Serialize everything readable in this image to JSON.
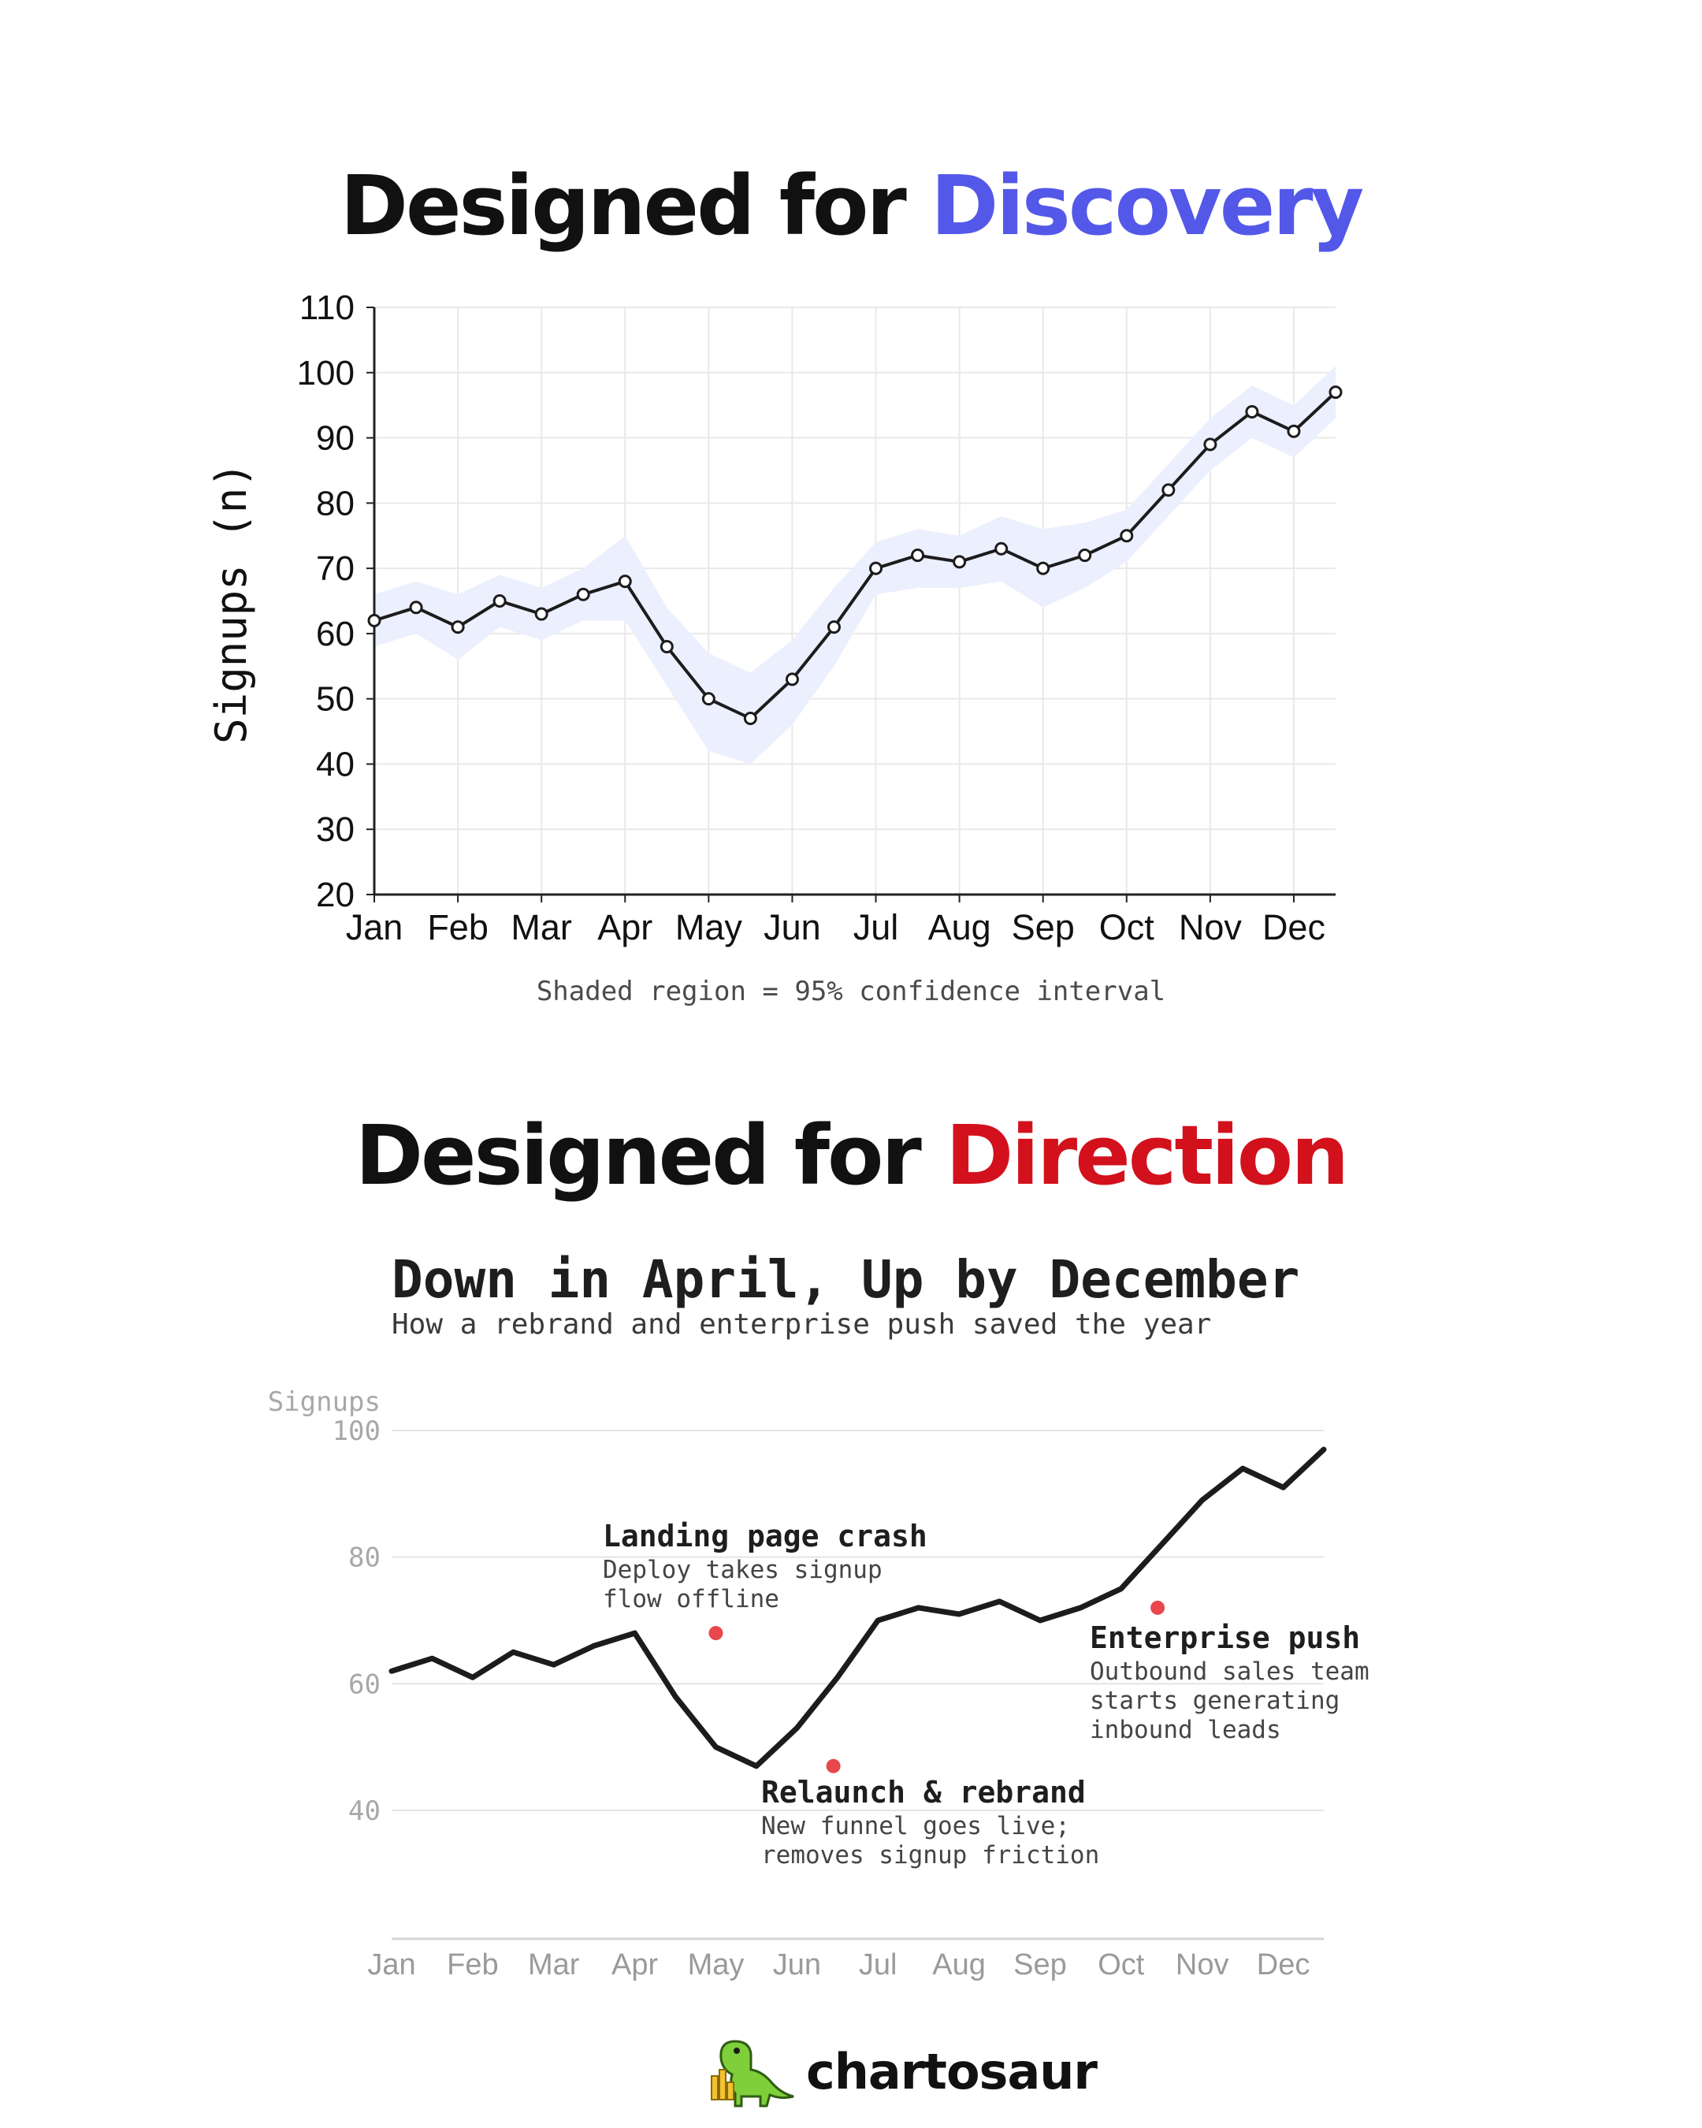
{
  "headings": {
    "top": {
      "prefix": "Designed for ",
      "accent": "Discovery"
    },
    "bottom": {
      "prefix": "Designed for ",
      "accent": "Direction"
    }
  },
  "colors": {
    "discovery_accent": "#5458e8",
    "direction_accent": "#d2111c",
    "band": "#eceffd",
    "line": "#1c1c1c",
    "marker": "#e8474b"
  },
  "chart_data": [
    {
      "type": "line",
      "ylabel": "Signups (n)",
      "xlabel": "",
      "ylim": [
        20,
        110
      ],
      "yticks": [
        20,
        30,
        40,
        50,
        60,
        70,
        80,
        90,
        100,
        110
      ],
      "month_labels": [
        "Jan",
        "Feb",
        "Mar",
        "Apr",
        "May",
        "Jun",
        "Jul",
        "Aug",
        "Sep",
        "Oct",
        "Nov",
        "Dec"
      ],
      "grid": true,
      "note": "Shaded region = 95% confidence interval",
      "series": [
        {
          "values": [
            62,
            64,
            61,
            65,
            63,
            66,
            68,
            58,
            50,
            47,
            53,
            61,
            70,
            72,
            71,
            73,
            70,
            72,
            75,
            82,
            89,
            94,
            91,
            97
          ]
        }
      ],
      "ci_lower": [
        58,
        60,
        56,
        61,
        59,
        62,
        62,
        52,
        42,
        40,
        46,
        55,
        66,
        67,
        67,
        68,
        64,
        67,
        71,
        78,
        85,
        90,
        87,
        93
      ],
      "ci_upper": [
        66,
        68,
        66,
        69,
        67,
        70,
        75,
        64,
        57,
        54,
        59,
        67,
        74,
        76,
        75,
        78,
        76,
        77,
        79,
        86,
        93,
        98,
        95,
        101
      ]
    },
    {
      "type": "line",
      "title": "Down in April, Up by December",
      "subtitle": "How a rebrand and enterprise push saved the year",
      "ylabel": "Signups",
      "ylim": [
        20,
        100
      ],
      "yticks": [
        40,
        60,
        80,
        100
      ],
      "month_labels": [
        "Jan",
        "Feb",
        "Mar",
        "Apr",
        "May",
        "Jun",
        "Jul",
        "Aug",
        "Sep",
        "Oct",
        "Nov",
        "Dec"
      ],
      "grid": true,
      "series": [
        {
          "values": [
            62,
            64,
            61,
            65,
            63,
            66,
            68,
            58,
            50,
            47,
            53,
            61,
            70,
            72,
            71,
            73,
            70,
            72,
            75,
            82,
            89,
            94,
            91,
            97
          ]
        }
      ],
      "annotations": [
        {
          "x_month": 4.0,
          "y": 68,
          "title": "Landing page crash",
          "lines": [
            "Deploy takes signup",
            "flow offline"
          ]
        },
        {
          "x_month": 5.45,
          "y": 47,
          "title": "Relaunch & rebrand",
          "lines": [
            "New funnel goes live;",
            "removes signup friction"
          ]
        },
        {
          "x_month": 9.45,
          "y": 72,
          "title": "Enterprise push",
          "lines": [
            "Outbound sales team",
            "starts generating",
            "inbound leads"
          ]
        }
      ]
    }
  ],
  "brand": {
    "name": "chartosaur",
    "logo_icon": "dinosaur-icon"
  }
}
